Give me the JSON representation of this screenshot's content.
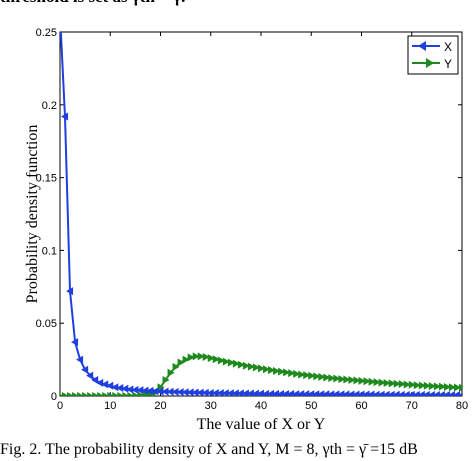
{
  "header_text": "threshold is set as γth = γ.",
  "footer_text": "Fig. 2. The probability density of X and Y, M = 8, γth = γ̄ =15 dB",
  "chart_data": {
    "type": "line",
    "title": "",
    "xlabel": "The value of X or Y",
    "ylabel": "Probability density function",
    "xlim": [
      0,
      80
    ],
    "ylim": [
      0,
      0.25
    ],
    "xticks": [
      "0",
      "10",
      "20",
      "30",
      "40",
      "50",
      "60",
      "70",
      "80"
    ],
    "yticks": [
      "0",
      "0.05",
      "0.1",
      "0.15",
      "0.2",
      "0.25"
    ],
    "grid": false,
    "legend_position": "top-right",
    "series": [
      {
        "name": "X",
        "color": "#1f3fe0",
        "marker": "left-triangle",
        "x": [
          0,
          1,
          2,
          3,
          4,
          5,
          6,
          7,
          8,
          9,
          10,
          11,
          12,
          13,
          14,
          15,
          16,
          17,
          18,
          19,
          20,
          21,
          22,
          23,
          24,
          25,
          26,
          27,
          28,
          29,
          30,
          31,
          32,
          33,
          34,
          35,
          36,
          37,
          38,
          39,
          40,
          41,
          42,
          43,
          44,
          45,
          46,
          47,
          48,
          49,
          50,
          51,
          52,
          53,
          54,
          55,
          56,
          57,
          58,
          59,
          60,
          61,
          62,
          63,
          64,
          65,
          66,
          67,
          68,
          69,
          70,
          71,
          72,
          73,
          74,
          75,
          76,
          77,
          78,
          79,
          80
        ],
        "y": [
          0.262,
          0.192,
          0.072,
          0.037,
          0.025,
          0.018,
          0.014,
          0.011,
          0.009,
          0.008,
          0.007,
          0.006,
          0.0055,
          0.005,
          0.0045,
          0.0042,
          0.004,
          0.0037,
          0.0035,
          0.0033,
          0.0031,
          0.003,
          0.0029,
          0.0028,
          0.0027,
          0.0026,
          0.0025,
          0.0024,
          0.0023,
          0.0022,
          0.0021,
          0.002,
          0.002,
          0.0019,
          0.0019,
          0.0018,
          0.0018,
          0.0017,
          0.0017,
          0.0016,
          0.0016,
          0.0015,
          0.0015,
          0.0015,
          0.0014,
          0.0014,
          0.0014,
          0.0013,
          0.0013,
          0.0013,
          0.0012,
          0.0012,
          0.0012,
          0.0012,
          0.0011,
          0.0011,
          0.0011,
          0.0011,
          0.001,
          0.001,
          0.001,
          0.001,
          0.001,
          0.0009,
          0.0009,
          0.0009,
          0.0009,
          0.0009,
          0.0008,
          0.0008,
          0.0008,
          0.0008,
          0.0008,
          0.0008,
          0.0007,
          0.0007,
          0.0007,
          0.0007,
          0.0007,
          0.0007,
          0.0007
        ]
      },
      {
        "name": "Y",
        "color": "#1e8a1e",
        "marker": "right-triangle",
        "x": [
          0,
          1,
          2,
          3,
          4,
          5,
          6,
          7,
          8,
          9,
          10,
          11,
          12,
          13,
          14,
          15,
          16,
          17,
          18,
          19,
          20,
          21,
          22,
          23,
          24,
          25,
          26,
          27,
          28,
          29,
          30,
          31,
          32,
          33,
          34,
          35,
          36,
          37,
          38,
          39,
          40,
          41,
          42,
          43,
          44,
          45,
          46,
          47,
          48,
          49,
          50,
          51,
          52,
          53,
          54,
          55,
          56,
          57,
          58,
          59,
          60,
          61,
          62,
          63,
          64,
          65,
          66,
          67,
          68,
          69,
          70,
          71,
          72,
          73,
          74,
          75,
          76,
          77,
          78,
          79,
          80
        ],
        "y": [
          0,
          0,
          0,
          0,
          0,
          0,
          0,
          0,
          0,
          0,
          0,
          0,
          0,
          0,
          0,
          0.0002,
          0.0005,
          0.001,
          0.0017,
          0.0025,
          0.006,
          0.011,
          0.016,
          0.02,
          0.023,
          0.025,
          0.0265,
          0.0272,
          0.0272,
          0.0268,
          0.026,
          0.0252,
          0.0244,
          0.0236,
          0.0229,
          0.0222,
          0.0215,
          0.0208,
          0.0202,
          0.0196,
          0.019,
          0.0184,
          0.0178,
          0.0172,
          0.0167,
          0.0162,
          0.0157,
          0.0152,
          0.0147,
          0.0143,
          0.0139,
          0.0135,
          0.0131,
          0.0127,
          0.0123,
          0.012,
          0.0116,
          0.0113,
          0.011,
          0.0107,
          0.0104,
          0.0101,
          0.0098,
          0.0095,
          0.0092,
          0.0089,
          0.0087,
          0.0084,
          0.0082,
          0.0079,
          0.0077,
          0.0074,
          0.0072,
          0.007,
          0.0068,
          0.0066,
          0.0064,
          0.0062,
          0.006,
          0.0058,
          0.0056
        ]
      }
    ]
  }
}
